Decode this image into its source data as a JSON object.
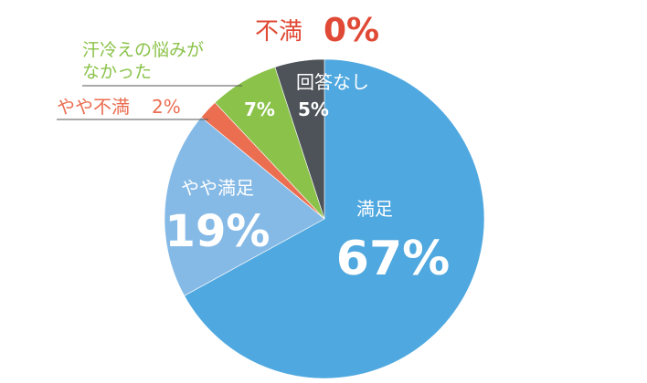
{
  "chart_data": {
    "type": "pie",
    "slices": [
      {
        "label": "満足",
        "value": 67,
        "value_text": "67%",
        "color": "#4FA8DF"
      },
      {
        "label": "やや満足",
        "value": 19,
        "value_text": "19%",
        "color": "#86BAE6"
      },
      {
        "label": "やや不満",
        "value": 2,
        "value_text": "2%",
        "color": "#EB6E51"
      },
      {
        "label": "汗冷えの悩みがなかった",
        "label_line1": "汗冷えの悩みが",
        "label_line2": "なかった",
        "value": 7,
        "value_text": "7%",
        "color": "#8BC24A"
      },
      {
        "label": "回答なし",
        "value": 5,
        "value_text": "5%",
        "color": "#4D5359"
      },
      {
        "label": "不満",
        "value": 0,
        "value_text": "0%",
        "color": "#E04935"
      }
    ],
    "start_angle": "top",
    "direction": "clockwise",
    "percent_sign": "%"
  }
}
